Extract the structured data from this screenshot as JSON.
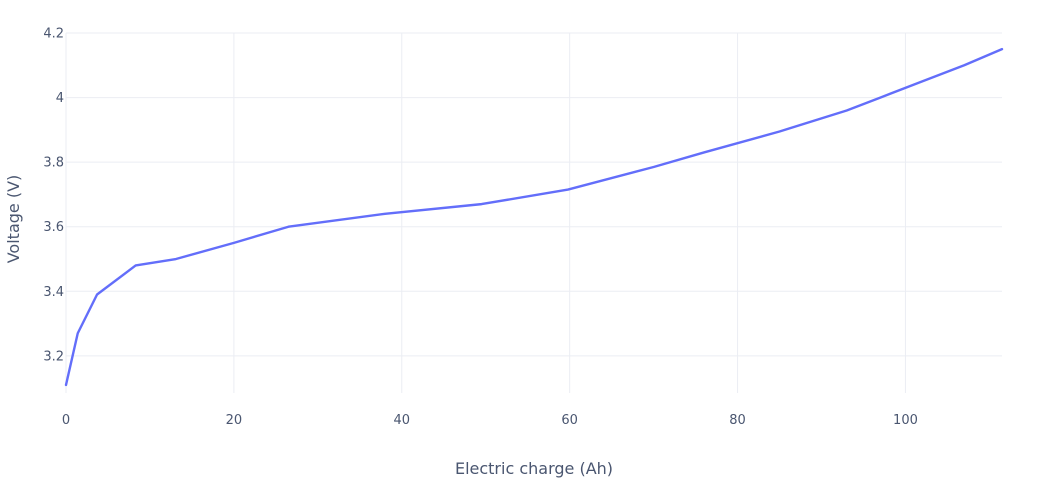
{
  "chart_data": {
    "type": "line",
    "title": "",
    "xlabel": "Electric charge (Ah)",
    "ylabel": "Voltage (V)",
    "xlim": [
      0,
      111.5
    ],
    "ylim": [
      3.085,
      4.2
    ],
    "xticks": [
      0,
      20,
      40,
      60,
      80,
      100
    ],
    "xtick_labels": [
      "0",
      "20",
      "40",
      "60",
      "80",
      "100"
    ],
    "yticks": [
      3.2,
      3.4,
      3.6,
      3.8,
      4.0,
      4.2
    ],
    "ytick_labels": [
      "3.2",
      "3.4",
      "3.6",
      "3.8",
      "4",
      "4.2"
    ],
    "grid": true,
    "legend": "none",
    "series": [
      {
        "color": "#636efa",
        "x": [
          0,
          1.4,
          3.7,
          8.3,
          13.1,
          20,
          26.5,
          38,
          49.5,
          59.8,
          70,
          76,
          85,
          93,
          97,
          102,
          107,
          111.5
        ],
        "y": [
          3.11,
          3.27,
          3.39,
          3.48,
          3.5,
          3.55,
          3.6,
          3.64,
          3.67,
          3.715,
          3.785,
          3.83,
          3.895,
          3.96,
          4.0,
          4.05,
          4.1,
          4.15
        ]
      }
    ]
  }
}
